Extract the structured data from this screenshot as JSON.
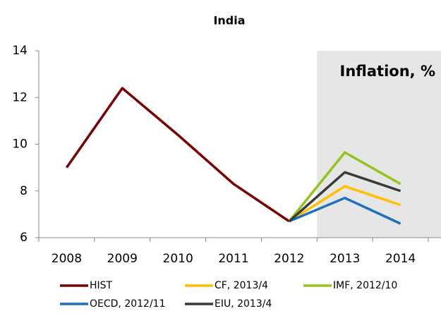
{
  "chart_data": {
    "type": "line",
    "title": "India",
    "annotation": "Inflation, %",
    "categories": [
      "2008",
      "2009",
      "2010",
      "2011",
      "2012",
      "2013",
      "2014"
    ],
    "series": [
      {
        "name": "HIST",
        "color": "#7b0000",
        "values": [
          9.0,
          12.4,
          10.4,
          8.3,
          6.7,
          null,
          null
        ]
      },
      {
        "name": "CF, 2013/4",
        "color": "#ffc000",
        "values": [
          null,
          null,
          null,
          null,
          6.7,
          8.2,
          7.4
        ]
      },
      {
        "name": "IMF, 2012/10",
        "color": "#92c41c",
        "values": [
          null,
          null,
          null,
          null,
          6.7,
          9.65,
          8.3
        ]
      },
      {
        "name": "OECD, 2012/11",
        "color": "#1f6fc1",
        "values": [
          null,
          null,
          null,
          null,
          6.7,
          7.7,
          6.6
        ]
      },
      {
        "name": "EIU, 2013/4",
        "color": "#3a3a3a",
        "values": [
          null,
          null,
          null,
          null,
          6.7,
          8.8,
          8.0
        ]
      }
    ],
    "ylim": [
      6,
      14
    ],
    "yticks": [
      6,
      8,
      10,
      12,
      14
    ]
  }
}
